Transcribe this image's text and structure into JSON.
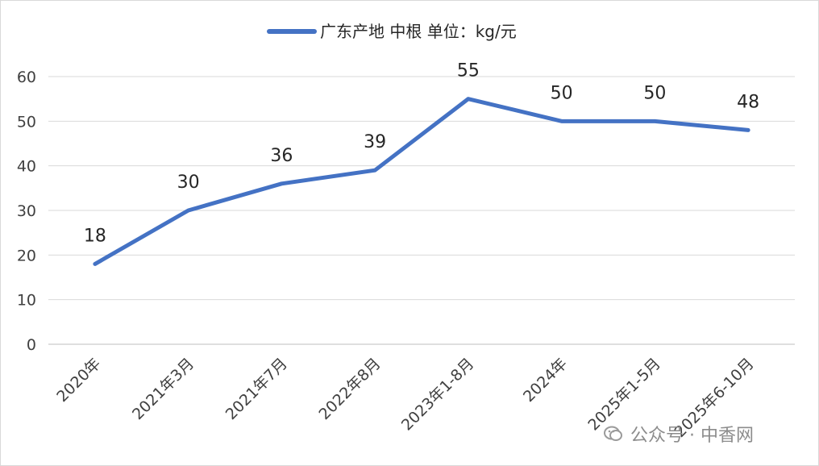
{
  "chart_data": {
    "type": "line",
    "categories": [
      "2020年",
      "2021年3月",
      "2021年7月",
      "2022年8月",
      "2023年1-8月",
      "2024年",
      "2025年1-5月",
      "2025年6-10月"
    ],
    "series": [
      {
        "name": "广东产地 中根 单位：kg/元",
        "values": [
          18,
          30,
          36,
          39,
          55,
          50,
          50,
          48
        ],
        "color": "#4472C4"
      }
    ],
    "ylim": [
      0,
      60
    ],
    "yticks": [
      0,
      10,
      20,
      30,
      40,
      50,
      60
    ],
    "grid": true,
    "legend": "top-center",
    "data_labels": true
  },
  "watermark": {
    "icon": "wechat-icon",
    "text": "公众号 · 中香网"
  }
}
